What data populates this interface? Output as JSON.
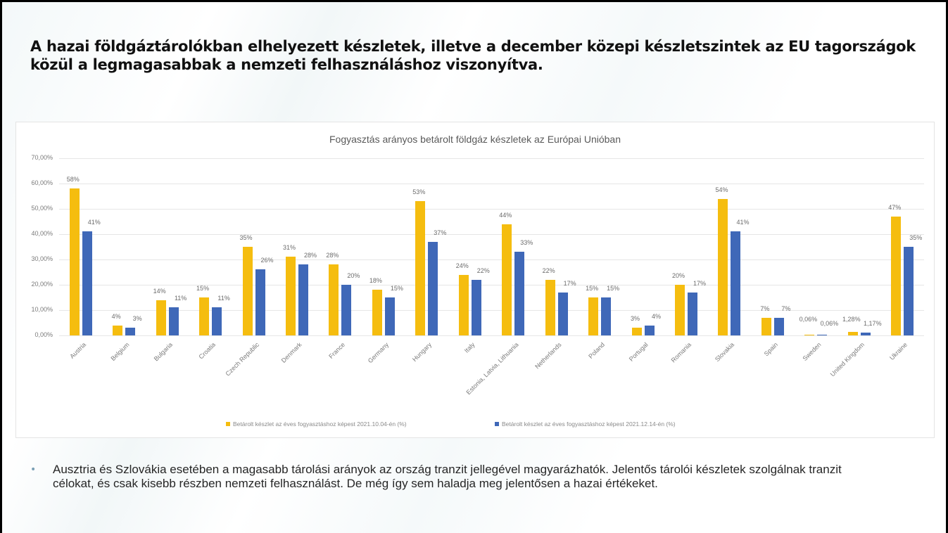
{
  "slide": {
    "title": "A hazai földgáztárolókban elhelyezett készletek, illetve a december közepi készletszintek az EU tagországok közül a legmagasabbak a nemzeti felhasználáshoz viszonyítva.",
    "bullet_icon": "bullet-dot",
    "bullet_text": "Ausztria és Szlovákia esetében a magasabb tárolási arányok az ország tranzit jellegével magyarázhatók. Jelentős tárolói készletek szolgálnak tranzit célokat, és csak kisebb részben nemzeti felhasználást. De még így sem haladja meg jelentősen a hazai értékeket."
  },
  "chart_data": {
    "type": "bar",
    "title": "Fogyasztás arányos betárolt földgáz készletek az Európai Unióban",
    "xlabel": "",
    "ylabel": "",
    "ylim": [
      0,
      70
    ],
    "yticks": [
      "0,00%",
      "10,00%",
      "20,00%",
      "30,00%",
      "40,00%",
      "50,00%",
      "60,00%",
      "70,00%"
    ],
    "grid": true,
    "legend_position": "bottom",
    "categories": [
      "Austria",
      "Belgium",
      "Bulgaria",
      "Croatia",
      "Czech Republic",
      "Denmark",
      "France",
      "Germany",
      "Hungary",
      "Italy",
      "Estonia, Latvia, Lithuania",
      "Netherlands",
      "Poland",
      "Portugal",
      "Romania",
      "Slovakia",
      "Spain",
      "Sweden",
      "United Kingdom",
      "Ukraine"
    ],
    "series": [
      {
        "name": "Betárolt készlet az éves fogyasztáshoz képest 2021.10.04-én (%)",
        "color": "#f5bd0f",
        "values": [
          58,
          4,
          14,
          15,
          35,
          31,
          28,
          18,
          53,
          24,
          44,
          22,
          15,
          3,
          20,
          54,
          7,
          0.06,
          1.28,
          47
        ],
        "labels": [
          "58%",
          "4%",
          "14%",
          "15%",
          "35%",
          "31%",
          "28%",
          "18%",
          "53%",
          "24%",
          "44%",
          "22%",
          "15%",
          "3%",
          "20%",
          "54%",
          "7%",
          "0,06%",
          "1,28%",
          "47%"
        ]
      },
      {
        "name": "Betárolt készlet az éves fogyasztáshoz képest 2021.12.14-én (%)",
        "color": "#3f68b8",
        "values": [
          41,
          3,
          11,
          11,
          26,
          28,
          20,
          15,
          37,
          22,
          33,
          17,
          15,
          4,
          17,
          41,
          7,
          0.06,
          1.17,
          35
        ],
        "labels": [
          "41%",
          "3%",
          "11%",
          "11%",
          "26%",
          "28%",
          "20%",
          "15%",
          "37%",
          "22%",
          "33%",
          "17%",
          "15%",
          "4%",
          "17%",
          "41%",
          "7%",
          "0,06%",
          "1,17%",
          "35%"
        ]
      }
    ]
  }
}
